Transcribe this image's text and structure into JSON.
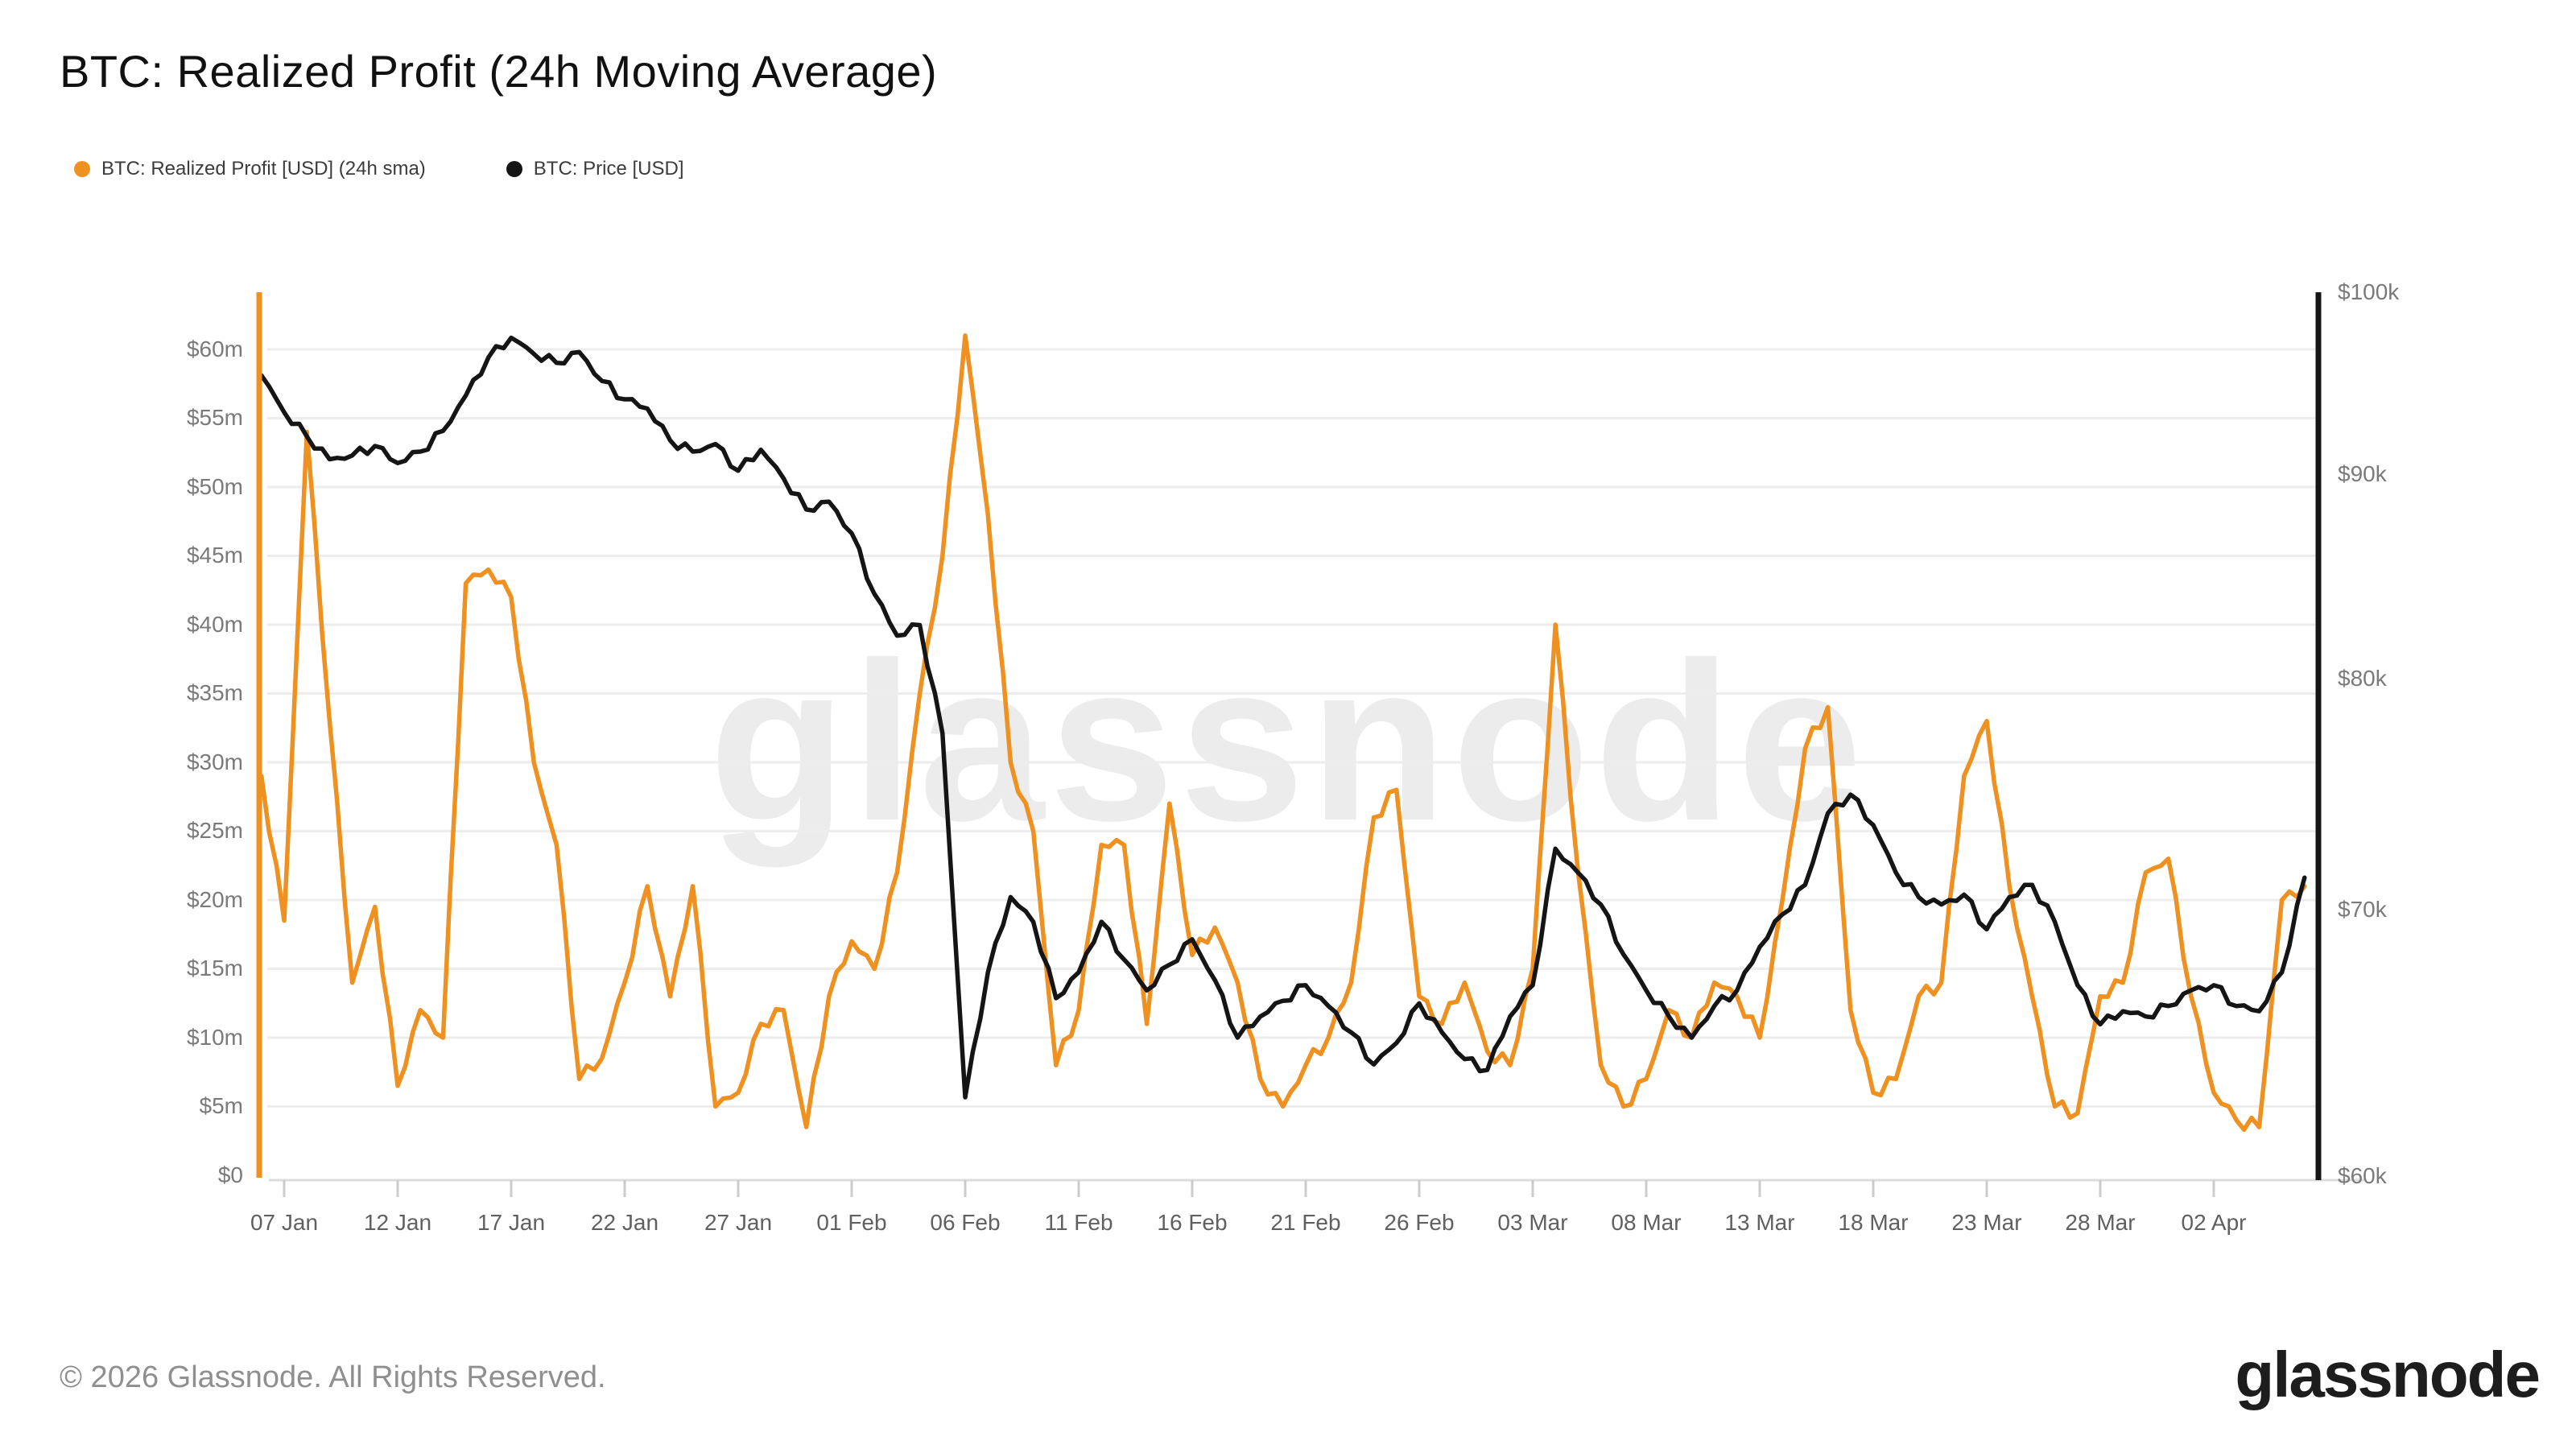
{
  "header": {
    "title": "BTC: Realized Profit (24h Moving Average)"
  },
  "legend": [
    {
      "label": "BTC: Realized Profit [USD] (24h sma)",
      "color": "#ef9120"
    },
    {
      "label": "BTC: Price [USD]",
      "color": "#151515"
    }
  ],
  "watermark": "glassnode",
  "footer": {
    "copyright": "© 2026 Glassnode. All Rights Reserved.",
    "logo_text": "glassnode"
  },
  "chart_data": {
    "type": "line",
    "title": "BTC: Realized Profit (24h Moving Average)",
    "x_start": "06 Jan",
    "x_end": "06 Apr",
    "frequency": "daily",
    "x_tick_labels": [
      "07 Jan",
      "12 Jan",
      "17 Jan",
      "22 Jan",
      "27 Jan",
      "01 Feb",
      "06 Feb",
      "11 Feb",
      "16 Feb",
      "21 Feb",
      "26 Feb",
      "03 Mar",
      "08 Mar",
      "13 Mar",
      "18 Mar",
      "23 Mar",
      "28 Mar",
      "02 Apr"
    ],
    "x_tick_day_index": [
      1,
      6,
      11,
      16,
      21,
      26,
      31,
      36,
      41,
      46,
      51,
      56,
      61,
      66,
      71,
      76,
      81,
      86
    ],
    "y_left": {
      "title": "Realized Profit",
      "unit": "USD millions",
      "scale": "linear",
      "tick_labels": [
        "$0",
        "$5m",
        "$10m",
        "$15m",
        "$20m",
        "$25m",
        "$30m",
        "$35m",
        "$40m",
        "$45m",
        "$50m",
        "$55m",
        "$60m"
      ],
      "tick_values": [
        0,
        5,
        10,
        15,
        20,
        25,
        30,
        35,
        40,
        45,
        50,
        55,
        60
      ],
      "min": 0,
      "max": 64.15,
      "grid": true
    },
    "y_right": {
      "title": "BTC Price",
      "unit": "USD thousands",
      "scale": "log",
      "tick_labels": [
        "$60k",
        "$70k",
        "$80k",
        "$90k",
        "$100k"
      ],
      "tick_values": [
        60,
        70,
        80,
        90,
        100
      ],
      "min": 60.03,
      "max": 100,
      "grid": false
    },
    "legend_position": "top-left",
    "series": [
      {
        "name": "BTC: Realized Profit [USD] (24h sma)",
        "axis": "left",
        "color": "#ef9120",
        "unit": "USD millions",
        "values": [
          29,
          18.5,
          54,
          33,
          14,
          19.5,
          6.5,
          12,
          10,
          43,
          44,
          42,
          30,
          24,
          7,
          8.5,
          14,
          21,
          13,
          21,
          5,
          6,
          11,
          12,
          3.5,
          13,
          17,
          15,
          22,
          35,
          45,
          61,
          48,
          30,
          25,
          8,
          12,
          24,
          24,
          11,
          27,
          16,
          18,
          14,
          7,
          5,
          8,
          10,
          14,
          26,
          28,
          13,
          11,
          14,
          9,
          8,
          15,
          40,
          22,
          8,
          5,
          7,
          12,
          10,
          14,
          13,
          10,
          20,
          31,
          34,
          12,
          6,
          7,
          13,
          14,
          29,
          33,
          21,
          13,
          5,
          4.5,
          13,
          14,
          22,
          23,
          13,
          6,
          4,
          3.5,
          20,
          21
        ]
      },
      {
        "name": "BTC: Price [USD]",
        "axis": "right",
        "color": "#151515",
        "unit": "USD thousands",
        "values": [
          95.3,
          93.3,
          92.0,
          90.8,
          91.0,
          91.5,
          90.6,
          91.2,
          92.3,
          94.2,
          96.3,
          97.4,
          96.5,
          96.0,
          96.6,
          95.0,
          94.0,
          93.5,
          91.8,
          91.2,
          91.6,
          90.2,
          91.3,
          89.8,
          88.2,
          88.6,
          87.0,
          84.0,
          82.0,
          82.5,
          77.5,
          62.8,
          67.5,
          70.5,
          69.5,
          66.5,
          67.5,
          69.5,
          68.0,
          66.8,
          67.8,
          68.8,
          67.2,
          65.0,
          65.8,
          66.4,
          67.0,
          66.2,
          65.2,
          64.0,
          64.8,
          66.3,
          65.2,
          64.2,
          63.8,
          65.8,
          67.0,
          72.5,
          71.5,
          70.2,
          68.2,
          66.8,
          65.8,
          65.0,
          66.2,
          66.8,
          68.5,
          69.8,
          71.0,
          74.0,
          74.8,
          73.5,
          71.5,
          70.5,
          70.2,
          70.6,
          69.2,
          70.5,
          71.0,
          69.5,
          67.0,
          65.5,
          66.0,
          65.8,
          66.2,
          66.8,
          67.0,
          66.2,
          66.0,
          67.5,
          71.3
        ]
      }
    ]
  }
}
